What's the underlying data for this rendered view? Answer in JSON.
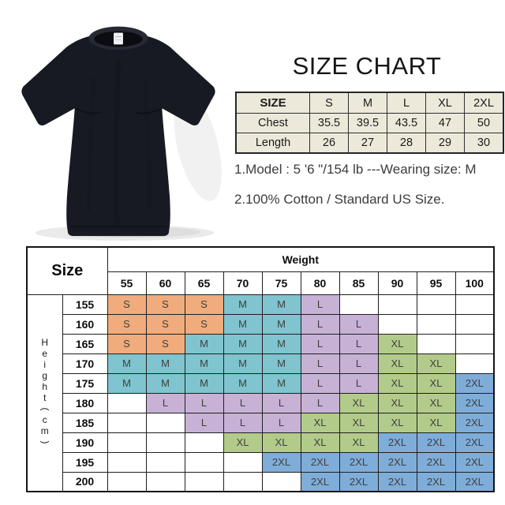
{
  "product_image": {
    "description": "Plain black crew-neck short-sleeve t-shirt with white neck tag"
  },
  "size_chart": {
    "title": "SIZE CHART",
    "table": {
      "header": [
        "SIZE",
        "S",
        "M",
        "L",
        "XL",
        "2XL"
      ],
      "rows": [
        {
          "label": "Chest",
          "values": [
            "35.5",
            "39.5",
            "43.5",
            "47",
            "50"
          ]
        },
        {
          "label": "Length",
          "values": [
            "26",
            "27",
            "28",
            "29",
            "30"
          ]
        }
      ],
      "bg_color": "#ece9db"
    },
    "notes": [
      "1.Model : 5 '6 \"/154 lb ---Wearing size: M",
      "2.100% Cotton / Standard US Size."
    ]
  },
  "fit_table": {
    "corner_label": "Size",
    "col_group_label": "Weight",
    "row_group_label": "Height(cm)",
    "weights": [
      "55",
      "60",
      "65",
      "70",
      "75",
      "80",
      "85",
      "90",
      "95",
      "100"
    ],
    "heights": [
      "155",
      "160",
      "165",
      "170",
      "175",
      "180",
      "185",
      "190",
      "195",
      "200"
    ],
    "cells": [
      [
        "S",
        "S",
        "S",
        "M",
        "M",
        "L",
        "",
        "",
        "",
        ""
      ],
      [
        "S",
        "S",
        "S",
        "M",
        "M",
        "L",
        "L",
        "",
        "",
        ""
      ],
      [
        "S",
        "S",
        "M",
        "M",
        "M",
        "L",
        "L",
        "XL",
        "",
        ""
      ],
      [
        "M",
        "M",
        "M",
        "M",
        "M",
        "L",
        "L",
        "XL",
        "XL",
        ""
      ],
      [
        "M",
        "M",
        "M",
        "M",
        "M",
        "L",
        "L",
        "XL",
        "XL",
        "2XL"
      ],
      [
        "",
        "L",
        "L",
        "L",
        "L",
        "L",
        "XL",
        "XL",
        "XL",
        "2XL"
      ],
      [
        "",
        "",
        "L",
        "L",
        "L",
        "XL",
        "XL",
        "XL",
        "XL",
        "2XL"
      ],
      [
        "",
        "",
        "",
        "XL",
        "XL",
        "XL",
        "XL",
        "2XL",
        "2XL",
        "2XL"
      ],
      [
        "",
        "",
        "",
        "",
        "2XL",
        "2XL",
        "2XL",
        "2XL",
        "2XL",
        "2XL"
      ],
      [
        "",
        "",
        "",
        "",
        "",
        "2XL",
        "2XL",
        "2XL",
        "2XL",
        "2XL"
      ]
    ],
    "size_colors": {
      "S": "#f0ac7c",
      "M": "#7fc4cf",
      "L": "#c7b2d6",
      "XL": "#b3cb8a",
      "2XL": "#7fadd9"
    }
  }
}
